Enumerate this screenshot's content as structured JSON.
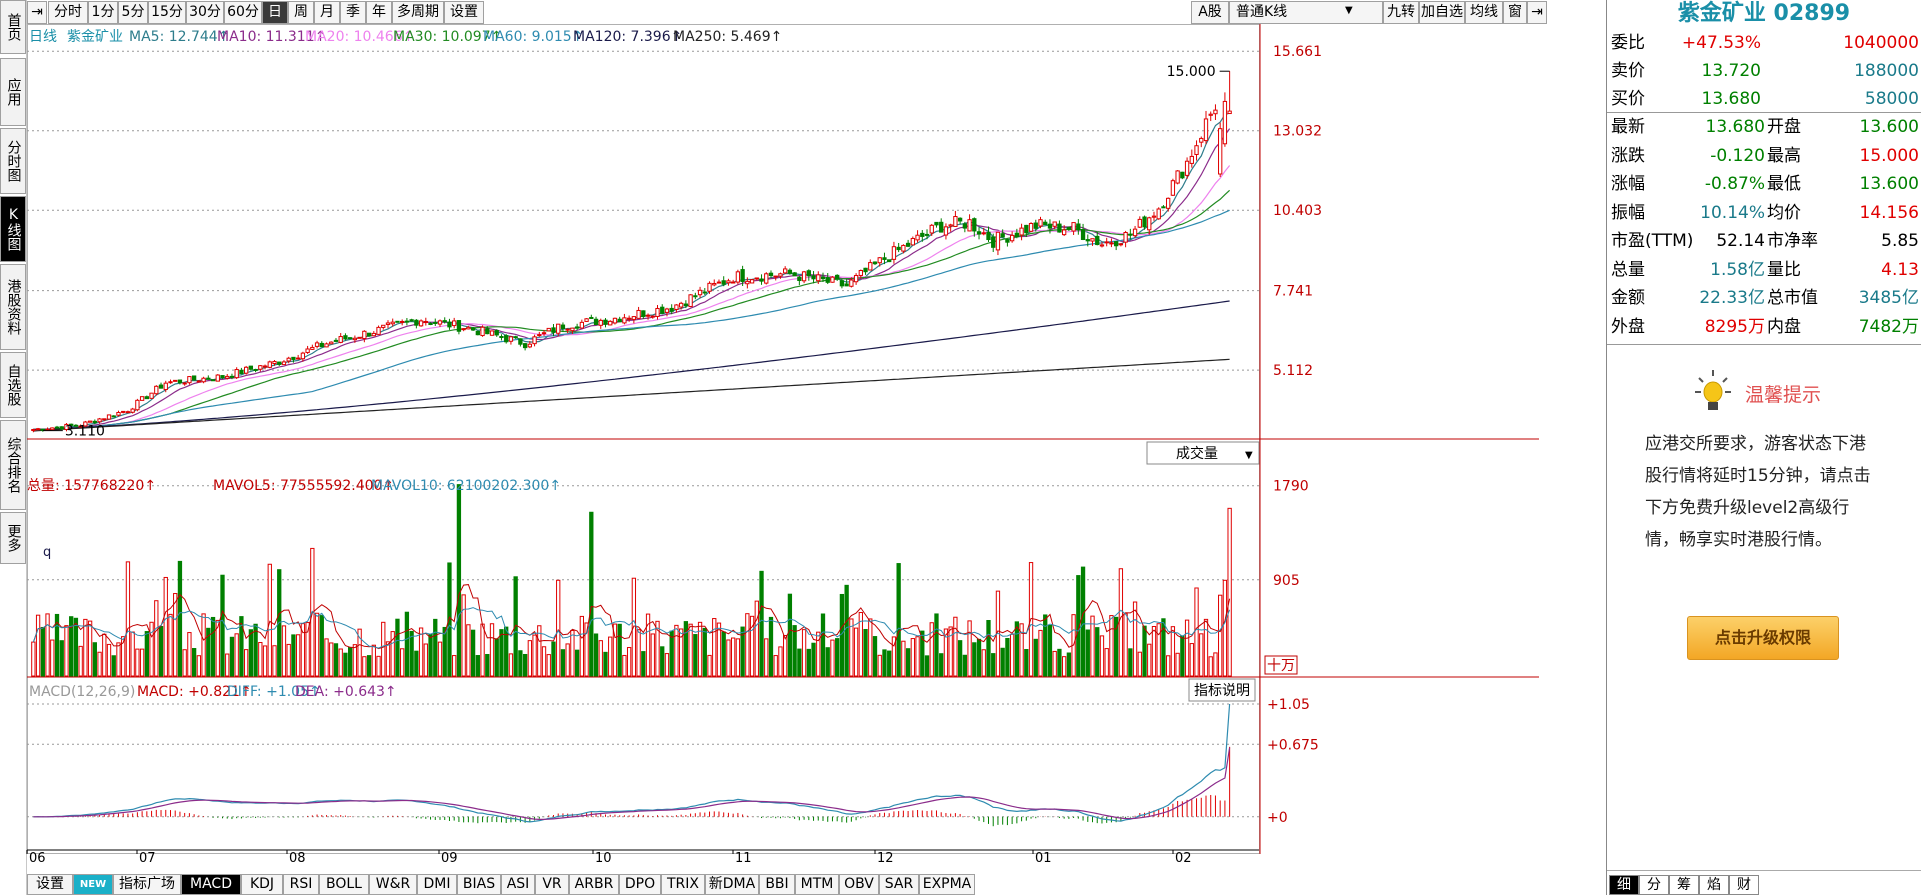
{
  "left_tabs": [
    {
      "label": "首页",
      "selected": false
    },
    {
      "label": "应用",
      "selected": false
    },
    {
      "label": "分时图",
      "selected": false
    },
    {
      "label": "K线图",
      "selected": true
    },
    {
      "label": "港股资料",
      "selected": false
    },
    {
      "label": "自选股",
      "selected": false
    },
    {
      "label": "综合排名",
      "selected": false
    },
    {
      "label": "更多",
      "selected": false
    }
  ],
  "toolbar": {
    "periods": [
      "分时",
      "1分",
      "5分",
      "15分",
      "30分",
      "60分",
      "日",
      "周",
      "月",
      "季",
      "年",
      "多周期",
      "设置"
    ],
    "selected_period": "日",
    "right_buttons": [
      "A股",
      "普通K线",
      "九转",
      "加自选",
      "均线",
      "窗"
    ]
  },
  "legend": {
    "period": "日线",
    "stock_name": "紫金矿业",
    "ma": [
      {
        "label": "MA5: 12.744↑",
        "color": "#2e7d8c"
      },
      {
        "label": "MA10: 11.311↑",
        "color": "#8b2c8b"
      },
      {
        "label": "MA20: 10.466↑",
        "color": "#ee82ee"
      },
      {
        "label": "MA30: 10.097↑",
        "color": "#228b22"
      },
      {
        "label": "MA60: 9.015↑",
        "color": "#2e8bb0"
      },
      {
        "label": "MA120: 7.396↑",
        "color": "#1a1a4a"
      },
      {
        "label": "MA250: 5.469↑",
        "color": "#222222"
      }
    ]
  },
  "price_axis": [
    "15.661",
    "13.032",
    "10.403",
    "7.741",
    "5.112"
  ],
  "high_label": "15.000",
  "low_label": "3.110",
  "volume_panel": {
    "total": "总量: 157768220↑",
    "mavol5": "MAVOL5: 77555592.400↑",
    "mavol10": "MAVOL10: 62100202.300↑",
    "selector": "成交量",
    "axis": [
      "1790",
      "905"
    ],
    "unit": "十万"
  },
  "macd_panel": {
    "title": "MACD(12,26,9)",
    "macd": "MACD: +0.821↑",
    "diff": "DIFF: +1.05↑",
    "dea": "DEA: +0.643↑",
    "button": "指标说明",
    "axis": [
      "+1.05",
      "+0.675",
      "+0"
    ]
  },
  "x_axis": [
    "06",
    "07",
    "08",
    "09",
    "10",
    "11",
    "12",
    "01",
    "02"
  ],
  "indicator_tabs": [
    "设置",
    "NEW",
    "指标广场",
    "MACD",
    "KDJ",
    "RSI",
    "BOLL",
    "W&R",
    "DMI",
    "BIAS",
    "ASI",
    "VR",
    "ARBR",
    "DPO",
    "TRIX",
    "新DMA",
    "BBI",
    "MTM",
    "OBV",
    "SAR",
    "EXPMA"
  ],
  "selected_indicator": "MACD",
  "right_panel": {
    "title": "紫金矿业 02899",
    "quotes": [
      {
        "l": "委比",
        "v": "+47.53%",
        "v2": "1040000",
        "c": "#e00000",
        "c2": "#e00000"
      },
      {
        "l": "卖价",
        "v": "13.720",
        "v2": "188000",
        "c": "#008000",
        "c2": "#1a7a8a"
      },
      {
        "l": "买价",
        "v": "13.680",
        "v2": "58000",
        "c": "#008000",
        "c2": "#1a7a8a"
      }
    ],
    "stats": [
      {
        "l": "最新",
        "v": "13.680",
        "c": "#008000",
        "l2": "开盘",
        "v2": "13.600",
        "c2": "#008000"
      },
      {
        "l": "涨跌",
        "v": "-0.120",
        "c": "#008000",
        "l2": "最高",
        "v2": "15.000",
        "c2": "#e00000"
      },
      {
        "l": "涨幅",
        "v": "-0.87%",
        "c": "#008000",
        "l2": "最低",
        "v2": "13.600",
        "c2": "#008000"
      },
      {
        "l": "振幅",
        "v": "10.14%",
        "c": "#1a7a8a",
        "l2": "均价",
        "v2": "14.156",
        "c2": "#e00000"
      },
      {
        "l": "市盈(TTM)",
        "v": "52.14",
        "c": "#000000",
        "l2": "市净率",
        "v2": "5.85",
        "c2": "#000000"
      },
      {
        "l": "总量",
        "v": "1.58亿",
        "c": "#1a7a8a",
        "l2": "量比",
        "v2": "4.13",
        "c2": "#e00000"
      },
      {
        "l": "金额",
        "v": "22.33亿",
        "c": "#1a7a8a",
        "l2": "总市值",
        "v2": "3485亿",
        "c2": "#1a7a8a"
      },
      {
        "l": "外盘",
        "v": "8295万",
        "c": "#e00000",
        "l2": "内盘",
        "v2": "7482万",
        "c2": "#008000"
      }
    ],
    "tip_title": "温馨提示",
    "tip_text": "应港交所要求，游客状态下港股行情将延时15分钟，请点击下方免费升级level2高级行情，畅享实时港股行情。",
    "upgrade_button": "点击升级权限",
    "bottom_tabs": [
      "细",
      "分",
      "筹",
      "焰",
      "财"
    ],
    "selected_bottom_tab": "细"
  },
  "chart_data": {
    "type": "candlestick",
    "title": "紫金矿业 日线",
    "price_range": [
      3.11,
      15.661
    ],
    "macd_range": [
      -0.3,
      1.05
    ],
    "x_month_ticks": [
      "06",
      "07",
      "08",
      "09",
      "10",
      "11",
      "12",
      "01",
      "02"
    ],
    "last_candle": {
      "open": 13.6,
      "high": 15.0,
      "low": 13.6,
      "close": 13.68
    }
  }
}
